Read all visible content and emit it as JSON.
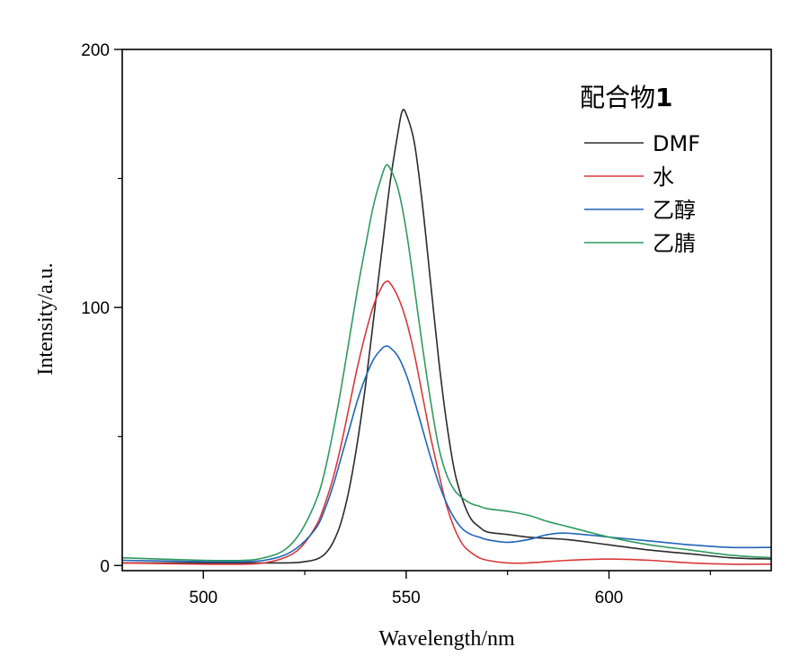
{
  "chart_data": {
    "type": "line",
    "title": "",
    "xlabel": "Wavelength/nm",
    "ylabel": "Intensity/a.u.",
    "xlim": [
      480,
      640
    ],
    "ylim": [
      -2,
      200
    ],
    "x_ticks": [
      500,
      550,
      600
    ],
    "x_tick_labels": [
      "500",
      "550",
      "600"
    ],
    "y_ticks": [
      0,
      100,
      200
    ],
    "y_tick_labels": [
      "0",
      "100",
      "200"
    ],
    "grid": false,
    "legend": {
      "title_text": "配合物",
      "title_bold": "1",
      "placement": "top-right"
    },
    "series": [
      {
        "name": "DMF",
        "color": "#2b2b2b",
        "x": [
          480,
          500,
          520,
          525,
          528,
          530,
          532,
          534,
          536,
          538,
          540,
          542,
          544,
          546,
          548,
          549,
          550,
          552,
          554,
          556,
          558,
          560,
          562,
          564,
          566,
          568,
          570,
          575,
          580,
          585,
          590,
          600,
          610,
          620,
          630,
          640
        ],
        "y": [
          1,
          1,
          1,
          1.5,
          2.5,
          4.5,
          9,
          17,
          30,
          48,
          70,
          96,
          122,
          148,
          168,
          176,
          175,
          164,
          140,
          110,
          80,
          55,
          36,
          25,
          18,
          15,
          13,
          12,
          11,
          10.5,
          10,
          8,
          6,
          4.5,
          3,
          2.5
        ]
      },
      {
        "name": "水",
        "color": "#d8383a",
        "x": [
          480,
          500,
          510,
          515,
          520,
          524,
          528,
          530,
          532,
          534,
          536,
          538,
          540,
          542,
          544,
          545,
          546,
          548,
          550,
          552,
          554,
          556,
          558,
          560,
          562,
          564,
          566,
          568,
          570,
          575,
          580,
          590,
          600,
          610,
          620,
          630,
          640
        ],
        "y": [
          1,
          0.5,
          0.5,
          1,
          3,
          7,
          16,
          24,
          34,
          47,
          62,
          77,
          90,
          101,
          108,
          110,
          109.5,
          104,
          95,
          82,
          66,
          50,
          36,
          23,
          14,
          8,
          5,
          3,
          2,
          1,
          1,
          2,
          2.5,
          2,
          1,
          0.5,
          0.5
        ]
      },
      {
        "name": "乙醇",
        "color": "#2064b8",
        "x": [
          480,
          500,
          510,
          515,
          520,
          524,
          528,
          530,
          532,
          534,
          536,
          538,
          540,
          542,
          544,
          545,
          546,
          548,
          550,
          552,
          554,
          556,
          558,
          560,
          562,
          564,
          566,
          568,
          570,
          575,
          580,
          585,
          590,
          600,
          610,
          620,
          630,
          640
        ],
        "y": [
          2,
          1.5,
          1.5,
          2,
          4,
          8,
          15,
          22,
          31,
          42,
          53,
          64,
          73,
          80,
          84,
          85,
          84.5,
          81,
          74,
          64,
          53,
          42,
          32,
          24,
          18,
          14,
          12,
          11,
          10,
          9,
          10,
          12,
          12.5,
          11,
          9.5,
          8,
          7,
          7
        ]
      },
      {
        "name": "乙腈",
        "color": "#2e9a5e",
        "x": [
          480,
          500,
          510,
          515,
          520,
          524,
          528,
          530,
          532,
          534,
          536,
          538,
          540,
          542,
          544,
          545,
          546,
          548,
          550,
          552,
          554,
          556,
          558,
          560,
          562,
          564,
          566,
          568,
          570,
          575,
          580,
          585,
          590,
          600,
          610,
          620,
          630,
          640
        ],
        "y": [
          3,
          2,
          2,
          3,
          6,
          13,
          26,
          37,
          52,
          69,
          88,
          107,
          124,
          140,
          151,
          155,
          154,
          146,
          130,
          108,
          85,
          64,
          46,
          35,
          29,
          26,
          24,
          23,
          22,
          21,
          19.5,
          17,
          15,
          11,
          8,
          6,
          4,
          3
        ]
      }
    ]
  }
}
